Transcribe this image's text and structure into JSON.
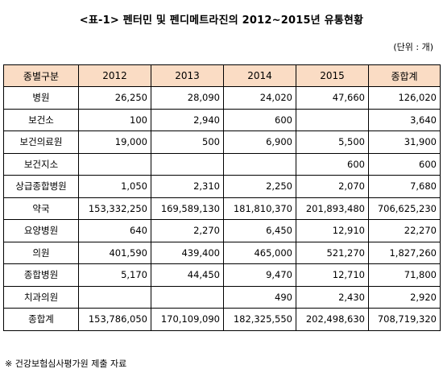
{
  "title": "<표-1> 펜터민 및 펜디메트라진의 2012~2015년 유통현황",
  "unit": "(단위 : 개)",
  "headers": [
    "종별구분",
    "2012",
    "2013",
    "2014",
    "2015",
    "종합계"
  ],
  "rows": [
    [
      "병원",
      "26,250",
      "28,090",
      "24,020",
      "47,660",
      "126,020"
    ],
    [
      "보건소",
      "100",
      "2,940",
      "600",
      "",
      "3,640"
    ],
    [
      "보건의료원",
      "19,000",
      "500",
      "6,900",
      "5,500",
      "31,900"
    ],
    [
      "보건지소",
      "",
      "",
      "",
      "600",
      "600"
    ],
    [
      "상급종합병원",
      "1,050",
      "2,310",
      "2,250",
      "2,070",
      "7,680"
    ],
    [
      "약국",
      "153,332,250",
      "169,589,130",
      "181,810,370",
      "201,893,480",
      "706,625,230"
    ],
    [
      "요양병원",
      "640",
      "2,270",
      "6,450",
      "12,910",
      "22,270"
    ],
    [
      "의원",
      "401,590",
      "439,400",
      "465,000",
      "521,270",
      "1,827,260"
    ],
    [
      "종합병원",
      "5,170",
      "44,450",
      "9,470",
      "12,710",
      "71,800"
    ],
    [
      "치과의원",
      "",
      "",
      "490",
      "2,430",
      "2,920"
    ],
    [
      "종합계",
      "153,786,050",
      "170,109,090",
      "182,325,550",
      "202,498,630",
      "708,719,320"
    ]
  ],
  "note": "※ 건강보험심사평가원 제출 자료",
  "colors": {
    "header_bg": "#fadcc4",
    "border": "#000000"
  }
}
